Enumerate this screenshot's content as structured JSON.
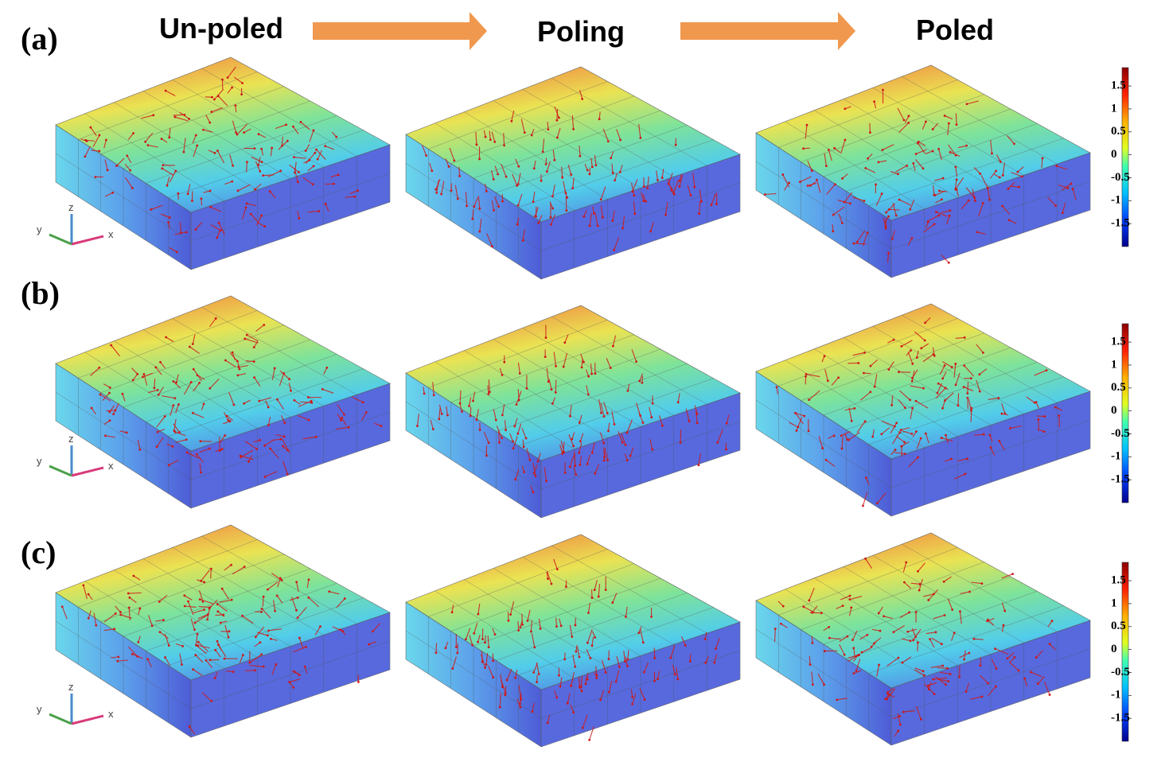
{
  "panels": [
    {
      "label": "(a)"
    },
    {
      "label": "(b)"
    },
    {
      "label": "(c)"
    }
  ],
  "stages": [
    "Un-poled",
    "Poling",
    "Poled"
  ],
  "colorbars": [
    {
      "range": [
        -2,
        1.9
      ],
      "ticks": [
        1.5,
        1,
        0.5,
        0,
        -0.5,
        -1,
        -1.5
      ]
    },
    {
      "range": [
        -2,
        1.9
      ],
      "ticks": [
        1.5,
        1,
        0.5,
        0,
        -0.5,
        -1,
        -1.5
      ]
    },
    {
      "range": [
        -2,
        1.9
      ],
      "ticks": [
        1.5,
        1,
        0.5,
        0,
        -0.5,
        -1,
        -1.5
      ]
    }
  ],
  "axes": [
    {
      "x": "x",
      "y": "y",
      "z": "z"
    },
    {
      "x": "x",
      "y": "y",
      "z": "z"
    },
    {
      "x": "x",
      "y": "y",
      "z": "z"
    }
  ]
}
